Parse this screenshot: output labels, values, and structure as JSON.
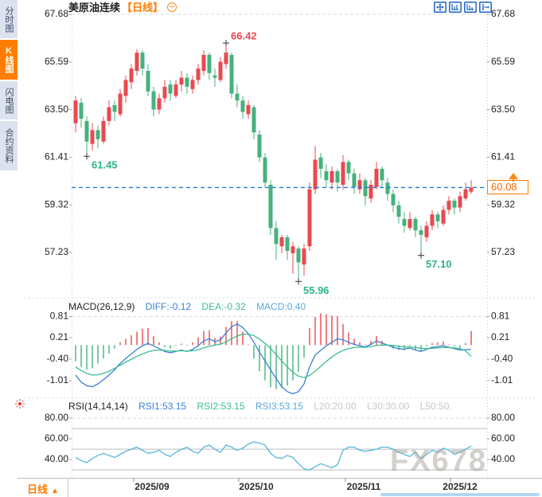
{
  "header": {
    "symbol": "美原油连续",
    "period_tag": "【日线】"
  },
  "sidebar": {
    "tabs": [
      {
        "label": "分时图",
        "active": false
      },
      {
        "label": "K线图",
        "active": true
      },
      {
        "label": "闪电图",
        "active": false
      },
      {
        "label": "合约资料",
        "active": false
      }
    ]
  },
  "main_chart": {
    "current_price_label": "60.08"
  },
  "macd": {
    "title": "MACD(26,12,9)",
    "diff": "DIFF:-0.12",
    "dea": "DEA:-0.32",
    "macd": "MACD:0.40"
  },
  "rsi": {
    "title": "RSI(14,14,14)",
    "rsi1": "RSI1:53.15",
    "rsi2": "RSI2:53.15",
    "rsi3": "RSI3:53.15",
    "l20": "L20:20.00",
    "l30": "L30:30.00",
    "l50": "L50:50."
  },
  "bottom": {
    "period_label": "日线",
    "period_arrow": "▲"
  },
  "watermark": "FX678",
  "colors": {
    "up": "#e8494f",
    "down": "#45b27d",
    "annotation_green": "#2eb38a",
    "orange": "#ff7d00",
    "price_line_blue": "#1f7bdc",
    "diff_blue": "#3b7fd6",
    "dea_green": "#3dbd92",
    "rsi_line": "#56b7da",
    "grid": "#d9dce3",
    "level_line": "#b8bbc2",
    "text_dark": "#1f1f1f",
    "tick": "#9aa0aa"
  },
  "chart_data": [
    {
      "type": "candlestick",
      "title": "美原油连续",
      "period": "日线",
      "y_ticks": [
        67.68,
        65.59,
        63.5,
        61.41,
        59.32,
        57.23
      ],
      "x_labels": [
        "2025/09",
        "2025/10",
        "2025/11",
        "2025/12"
      ],
      "current_price": 60.08,
      "markers": [
        {
          "type": "high",
          "index": 27,
          "price": 66.42
        },
        {
          "type": "low",
          "index": 2,
          "price": 61.45
        },
        {
          "type": "low",
          "index": 40,
          "price": 55.96
        },
        {
          "type": "low",
          "index": 62,
          "price": 57.1
        }
      ],
      "candles": [
        [
          62.9,
          64.1,
          62.5,
          63.9
        ],
        [
          63.8,
          64.0,
          62.7,
          63.1
        ],
        [
          63.0,
          63.2,
          61.45,
          62.1
        ],
        [
          62.0,
          62.9,
          61.7,
          62.6
        ],
        [
          62.6,
          62.8,
          61.8,
          62.2
        ],
        [
          62.1,
          63.2,
          62.0,
          63.0
        ],
        [
          63.0,
          63.9,
          62.8,
          63.6
        ],
        [
          63.7,
          63.9,
          63.0,
          63.4
        ],
        [
          63.3,
          64.4,
          63.2,
          64.2
        ],
        [
          64.1,
          65.0,
          63.8,
          64.8
        ],
        [
          64.7,
          65.5,
          64.4,
          65.3
        ],
        [
          65.2,
          66.15,
          65.0,
          66.0
        ],
        [
          66.0,
          66.1,
          65.0,
          65.3
        ],
        [
          65.2,
          65.5,
          64.1,
          64.3
        ],
        [
          64.3,
          64.5,
          63.2,
          63.5
        ],
        [
          63.5,
          64.2,
          63.3,
          64.0
        ],
        [
          64.0,
          64.8,
          63.8,
          64.5
        ],
        [
          64.6,
          64.8,
          63.9,
          64.2
        ],
        [
          64.1,
          64.8,
          64.0,
          64.6
        ],
        [
          64.6,
          65.2,
          64.3,
          64.9
        ],
        [
          64.9,
          65.1,
          64.2,
          64.5
        ],
        [
          64.4,
          65.0,
          64.2,
          64.8
        ],
        [
          64.8,
          65.5,
          64.6,
          65.3
        ],
        [
          65.2,
          66.1,
          65.0,
          65.9
        ],
        [
          65.9,
          66.0,
          64.8,
          65.1
        ],
        [
          65.0,
          65.3,
          64.5,
          64.9
        ],
        [
          64.8,
          65.8,
          64.7,
          65.6
        ],
        [
          65.5,
          66.42,
          65.3,
          66.0
        ],
        [
          65.9,
          66.0,
          64.0,
          64.2
        ],
        [
          64.2,
          64.6,
          63.6,
          63.9
        ],
        [
          63.9,
          64.1,
          63.1,
          63.4
        ],
        [
          63.3,
          63.9,
          63.1,
          63.7
        ],
        [
          63.6,
          63.7,
          62.2,
          62.5
        ],
        [
          62.4,
          62.6,
          61.2,
          61.4
        ],
        [
          61.4,
          61.6,
          60.1,
          60.3
        ],
        [
          60.2,
          60.4,
          58.0,
          58.3
        ],
        [
          58.3,
          58.6,
          56.9,
          57.6
        ],
        [
          57.5,
          58.0,
          57.2,
          57.9
        ],
        [
          57.9,
          58.0,
          56.9,
          57.3
        ],
        [
          57.2,
          57.7,
          56.3,
          57.5
        ],
        [
          57.4,
          57.5,
          55.96,
          56.8
        ],
        [
          56.7,
          57.6,
          56.2,
          57.4
        ],
        [
          57.5,
          60.3,
          57.3,
          60.0
        ],
        [
          60.0,
          61.9,
          59.8,
          61.3
        ],
        [
          61.4,
          61.6,
          60.5,
          60.9
        ],
        [
          60.8,
          61.1,
          60.1,
          60.4
        ],
        [
          60.3,
          61.0,
          60.0,
          60.8
        ],
        [
          60.8,
          60.9,
          59.9,
          60.3
        ],
        [
          60.2,
          61.5,
          60.0,
          61.2
        ],
        [
          61.2,
          61.3,
          60.4,
          60.7
        ],
        [
          60.7,
          60.9,
          59.8,
          60.1
        ],
        [
          60.0,
          60.7,
          59.8,
          60.4
        ],
        [
          60.4,
          60.5,
          59.3,
          59.7
        ],
        [
          59.6,
          60.4,
          59.4,
          60.2
        ],
        [
          60.1,
          61.2,
          60.0,
          60.9
        ],
        [
          60.9,
          61.0,
          60.1,
          60.4
        ],
        [
          60.3,
          60.5,
          59.5,
          59.8
        ],
        [
          59.8,
          60.0,
          59.0,
          59.3
        ],
        [
          59.3,
          59.5,
          58.5,
          58.8
        ],
        [
          58.7,
          59.0,
          58.1,
          58.4
        ],
        [
          58.3,
          59.0,
          58.2,
          58.7
        ],
        [
          58.7,
          58.8,
          57.9,
          58.2
        ],
        [
          58.2,
          58.4,
          57.1,
          58.0
        ],
        [
          57.9,
          58.6,
          57.7,
          58.4
        ],
        [
          58.4,
          59.1,
          58.2,
          58.9
        ],
        [
          58.9,
          59.0,
          58.3,
          58.6
        ],
        [
          58.5,
          59.3,
          58.4,
          59.1
        ],
        [
          59.1,
          59.7,
          58.9,
          59.5
        ],
        [
          59.5,
          59.6,
          58.9,
          59.2
        ],
        [
          59.2,
          59.9,
          59.0,
          59.7
        ],
        [
          59.6,
          60.3,
          59.5,
          60.0
        ],
        [
          59.9,
          60.4,
          59.8,
          60.08
        ]
      ]
    },
    {
      "type": "macd",
      "title": "MACD(26,12,9)",
      "diff_latest": -0.12,
      "dea_latest": -0.32,
      "macd_latest": 0.4,
      "y_ticks": [
        0.81,
        0.21,
        -0.4,
        -1.01
      ],
      "hist": [
        -0.46,
        -0.62,
        -0.7,
        -0.66,
        -0.52,
        -0.38,
        -0.24,
        -0.1,
        0.08,
        0.18,
        0.28,
        0.38,
        0.46,
        0.48,
        0.26,
        0.08,
        -0.06,
        -0.1,
        -0.02,
        0.04,
        -0.02,
        0.08,
        0.22,
        0.4,
        0.42,
        0.2,
        0.24,
        0.52,
        0.68,
        0.68,
        0.38,
        0.02,
        -0.38,
        -0.74,
        -1.0,
        -1.2,
        -1.25,
        -1.22,
        -1.15,
        -1.0,
        -0.76,
        -0.36,
        0.48,
        0.8,
        0.9,
        0.88,
        0.84,
        0.82,
        0.6,
        0.36,
        0.18,
        0.08,
        0.02,
        0.12,
        0.26,
        0.12,
        0.0,
        -0.1,
        -0.14,
        -0.14,
        -0.04,
        -0.14,
        -0.18,
        -0.04,
        0.06,
        0.08,
        0.1,
        0.02,
        -0.04,
        -0.08,
        0.06,
        0.4
      ],
      "diff": [
        -0.85,
        -1.05,
        -1.15,
        -1.18,
        -1.1,
        -0.98,
        -0.85,
        -0.7,
        -0.52,
        -0.38,
        -0.25,
        -0.12,
        -0.02,
        0.05,
        -0.02,
        -0.1,
        -0.18,
        -0.22,
        -0.18,
        -0.14,
        -0.18,
        -0.12,
        -0.02,
        0.12,
        0.18,
        0.1,
        0.15,
        0.35,
        0.52,
        0.6,
        0.5,
        0.32,
        0.08,
        -0.2,
        -0.45,
        -0.7,
        -0.95,
        -1.18,
        -1.32,
        -1.38,
        -1.32,
        -1.1,
        -0.62,
        -0.28,
        -0.15,
        -0.02,
        0.08,
        0.18,
        0.15,
        0.08,
        0.02,
        -0.02,
        -0.05,
        0.02,
        0.12,
        0.06,
        0.0,
        -0.06,
        -0.1,
        -0.12,
        -0.08,
        -0.14,
        -0.18,
        -0.12,
        -0.06,
        -0.04,
        -0.02,
        -0.06,
        -0.1,
        -0.14,
        -0.13,
        -0.12
      ],
      "dea": [
        -0.62,
        -0.72,
        -0.8,
        -0.85,
        -0.84,
        -0.8,
        -0.74,
        -0.66,
        -0.57,
        -0.48,
        -0.4,
        -0.32,
        -0.25,
        -0.19,
        -0.15,
        -0.14,
        -0.15,
        -0.17,
        -0.17,
        -0.16,
        -0.17,
        -0.16,
        -0.13,
        -0.08,
        -0.03,
        0.0,
        0.03,
        0.09,
        0.18,
        0.26,
        0.31,
        0.31,
        0.27,
        0.17,
        0.05,
        -0.1,
        -0.27,
        -0.45,
        -0.62,
        -0.77,
        -0.88,
        -0.92,
        -0.86,
        -0.74,
        -0.6,
        -0.46,
        -0.34,
        -0.23,
        -0.15,
        -0.1,
        -0.07,
        -0.06,
        -0.06,
        -0.04,
        -0.01,
        0.0,
        0.0,
        -0.01,
        -0.03,
        -0.05,
        -0.06,
        -0.07,
        -0.09,
        -0.1,
        -0.09,
        -0.08,
        -0.07,
        -0.07,
        -0.08,
        -0.1,
        -0.16,
        -0.32
      ]
    },
    {
      "type": "rsi",
      "title": "RSI(14,14,14)",
      "latest": {
        "rsi1": 53.15,
        "rsi2": 53.15,
        "rsi3": 53.15
      },
      "y_ticks": [
        80,
        60,
        40
      ],
      "levels": [
        80,
        70,
        50,
        30
      ],
      "values": [
        42,
        39,
        37,
        41,
        44,
        46,
        44,
        42,
        45,
        48,
        50,
        52,
        49,
        46,
        47,
        49,
        45,
        43,
        47,
        50,
        52,
        48,
        46,
        52,
        54,
        50,
        47,
        54,
        52,
        49,
        51,
        55,
        57,
        56,
        54,
        46,
        42,
        41,
        44,
        42,
        36,
        31,
        30,
        33,
        36,
        34,
        32,
        35,
        49,
        52,
        52,
        49,
        48,
        49,
        50,
        52,
        52,
        50,
        47,
        45,
        43,
        47,
        41,
        45,
        49,
        47,
        51,
        49,
        45,
        47,
        50,
        53.15
      ]
    }
  ]
}
